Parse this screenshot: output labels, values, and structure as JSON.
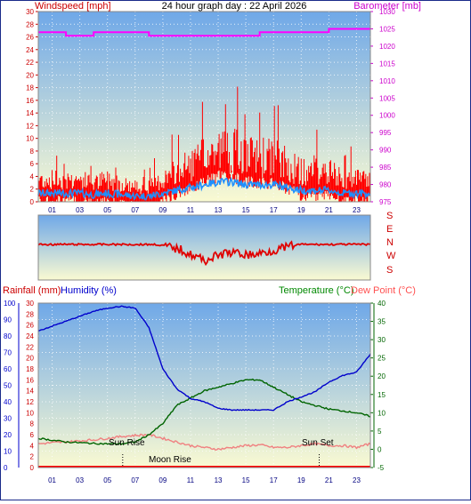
{
  "title": "24 hour graph day : 22 April 2026",
  "colors": {
    "wind": "#ff0000",
    "wind_avg": "#1e90ff",
    "baro": "#ff00ff",
    "dir": "#e00000",
    "rain": "#ff0000",
    "humidity": "#0000cc",
    "temperature": "#006400",
    "dewpoint": "#f08080",
    "temp_label": "#009900",
    "dew_label": "#ff5050",
    "humid_label": "#0000ff",
    "bg_top": "#6fa8e8",
    "bg_bottom": "#fafad2"
  },
  "top_panel": {
    "left_axis_label": "Windspeed [mph]",
    "right_axis_label": "Barometer [mb]",
    "left_ticks": [
      0,
      2,
      4,
      6,
      8,
      10,
      12,
      14,
      16,
      18,
      20,
      22,
      24,
      26,
      28,
      30
    ],
    "right_ticks": [
      975,
      980,
      985,
      990,
      995,
      1000,
      1005,
      1010,
      1015,
      1020,
      1025,
      1030
    ]
  },
  "direction_panel": {
    "labels": [
      "S",
      "E",
      "N",
      "W",
      "S"
    ]
  },
  "bottom_panel": {
    "rain_label": "Rainfall (mm)",
    "humidity_label": "Humidity (%)",
    "temp_label": "Temperature (°C)",
    "dew_label": "Dew Point (°C)",
    "humidity_ticks": [
      0,
      10,
      20,
      30,
      40,
      50,
      60,
      70,
      80,
      90,
      100
    ],
    "rain_ticks": [
      0,
      2,
      4,
      6,
      8,
      10,
      12,
      14,
      16,
      18,
      20,
      22,
      24,
      26,
      28,
      30
    ],
    "temp_ticks": [
      -5,
      0,
      5,
      10,
      15,
      20,
      25,
      30,
      35,
      40
    ],
    "sunrise_label": "Sun Rise",
    "sunset_label": "Sun Set",
    "moonrise_label": "Moon Rise"
  },
  "x_ticks": [
    "01",
    "03",
    "05",
    "07",
    "09",
    "11",
    "13",
    "15",
    "17",
    "19",
    "21",
    "23"
  ],
  "chart_data": [
    {
      "type": "line",
      "title": "24 hour graph day : 22 April 2026",
      "xlabel": "",
      "ylabel": "Windspeed [mph]",
      "ylim": [
        0,
        30
      ],
      "y2label": "Barometer [mb]",
      "y2lim": [
        975,
        1030
      ],
      "x_hours": [
        0,
        1,
        2,
        3,
        4,
        5,
        6,
        7,
        8,
        9,
        10,
        11,
        12,
        13,
        14,
        15,
        16,
        17,
        18,
        19,
        20,
        21,
        22,
        23,
        24
      ],
      "series": [
        {
          "name": "Windspeed [mph]",
          "axis": "left",
          "values": [
            3,
            3,
            3,
            3,
            2.5,
            3,
            2.5,
            2,
            2,
            3,
            4,
            5,
            6,
            7,
            7,
            6,
            6,
            6,
            5,
            4,
            4,
            4,
            3,
            3,
            3
          ]
        },
        {
          "name": "Barometer [mb]",
          "axis": "right",
          "x": [
            0,
            1,
            2,
            3,
            4,
            5,
            6,
            7,
            8,
            9,
            10,
            11,
            12,
            13,
            14,
            15,
            16,
            17,
            18,
            19,
            20,
            21,
            22,
            23,
            24
          ],
          "values": [
            1024,
            1024,
            1023,
            1023,
            1024,
            1024,
            1024,
            1024,
            1023,
            1023,
            1023,
            1023,
            1023,
            1023,
            1023,
            1023,
            1024,
            1024,
            1024,
            1024,
            1024,
            1025,
            1025,
            1025,
            1025
          ]
        }
      ]
    },
    {
      "type": "line",
      "title": "",
      "ylabel": "Wind direction",
      "x_hours": [
        0,
        2,
        4,
        6,
        8,
        10,
        12,
        13,
        14,
        15,
        16,
        18,
        20,
        22,
        24
      ],
      "series": [
        {
          "name": "Wind direction",
          "values": [
            0,
            0,
            0,
            0,
            0,
            0,
            -2,
            -6,
            -3,
            -4,
            -2,
            0,
            0,
            0,
            0
          ]
        }
      ]
    },
    {
      "type": "line",
      "title": "",
      "ylabel": "Humidity (%)",
      "ylim": [
        0,
        100
      ],
      "y2label": "Temperature (°C)",
      "y2lim": [
        -5,
        40
      ],
      "x_hours": [
        0,
        1,
        2,
        3,
        4,
        5,
        6,
        7,
        8,
        9,
        10,
        11,
        12,
        13,
        14,
        15,
        16,
        17,
        18,
        19,
        20,
        21,
        22,
        23,
        24
      ],
      "series": [
        {
          "name": "Humidity (%)",
          "axis": "left",
          "values": [
            83,
            86,
            89,
            92,
            95,
            97,
            98,
            97,
            85,
            60,
            48,
            42,
            40,
            36,
            35,
            35,
            35,
            35,
            40,
            43,
            46,
            52,
            56,
            58,
            69
          ]
        },
        {
          "name": "Temperature (°C)",
          "axis": "right",
          "values": [
            3,
            2.5,
            2,
            1.8,
            1.6,
            1.5,
            1.5,
            2,
            4,
            7,
            12,
            14,
            16,
            17,
            18,
            19,
            19,
            17,
            15,
            13,
            12,
            11,
            10.5,
            10,
            9
          ]
        },
        {
          "name": "Dew Point (°C)",
          "axis": "right",
          "values": [
            1.5,
            1.8,
            2,
            2.3,
            2.6,
            3,
            3.5,
            3.8,
            4,
            3,
            2,
            1,
            0.5,
            0,
            0.5,
            1,
            1.2,
            0.5,
            0.5,
            1,
            1.5,
            1,
            1,
            0.5,
            1.5
          ]
        },
        {
          "name": "Rainfall (mm)",
          "axis": "left",
          "values": [
            0,
            0,
            0,
            0,
            0,
            0,
            0,
            0,
            0,
            0,
            0,
            0,
            0,
            0,
            0,
            0,
            0,
            0,
            0,
            0,
            0,
            0,
            0,
            0,
            0
          ]
        }
      ]
    }
  ]
}
